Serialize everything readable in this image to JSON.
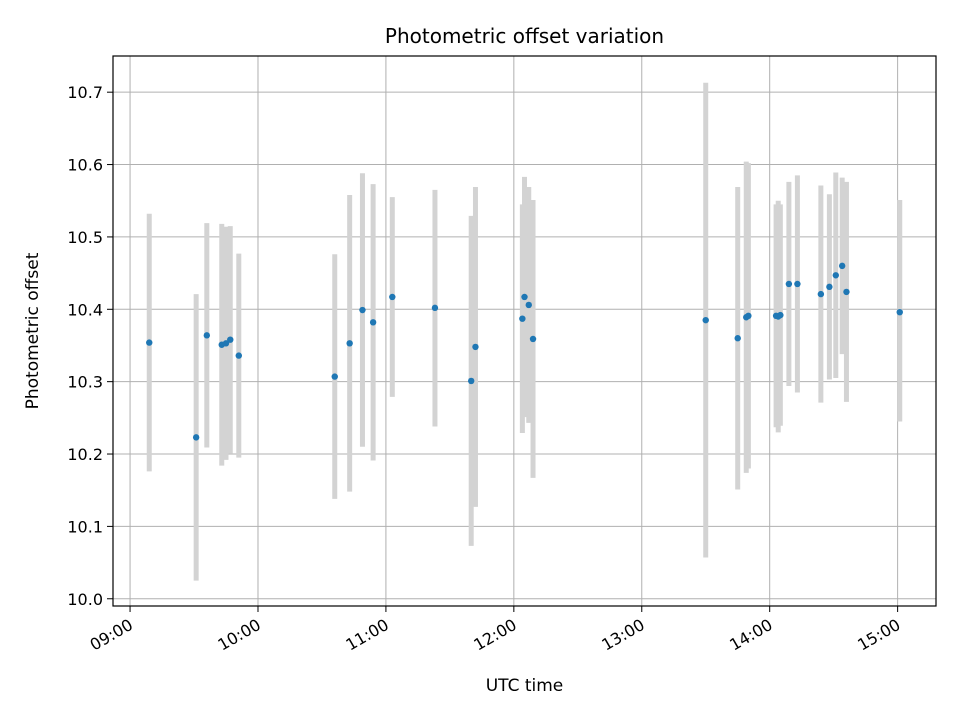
{
  "chart_data": {
    "type": "scatter",
    "title": "Photometric offset variation",
    "xlabel": "UTC time",
    "ylabel": "Photometric offset",
    "xlim": [
      "08:52",
      "15:18"
    ],
    "ylim": [
      9.99,
      10.75
    ],
    "x_ticks": [
      "09:00",
      "10:00",
      "11:00",
      "12:00",
      "13:00",
      "14:00",
      "15:00"
    ],
    "y_ticks": [
      "10.0",
      "10.1",
      "10.2",
      "10.3",
      "10.4",
      "10.5",
      "10.6",
      "10.7"
    ],
    "grid": true,
    "marker_color": "#1f77b4",
    "errorbar_color": "#d3d3d3",
    "points": [
      {
        "t": "09:09",
        "y": 10.354,
        "lo": 10.176,
        "hi": 10.532
      },
      {
        "t": "09:31",
        "y": 10.223,
        "lo": 10.025,
        "hi": 10.421
      },
      {
        "t": "09:36",
        "y": 10.364,
        "lo": 10.209,
        "hi": 10.519
      },
      {
        "t": "09:43",
        "y": 10.351,
        "lo": 10.184,
        "hi": 10.518
      },
      {
        "t": "09:45",
        "y": 10.353,
        "lo": 10.192,
        "hi": 10.514
      },
      {
        "t": "09:47",
        "y": 10.358,
        "lo": 10.201,
        "hi": 10.515
      },
      {
        "t": "09:51",
        "y": 10.336,
        "lo": 10.195,
        "hi": 10.477
      },
      {
        "t": "10:36",
        "y": 10.307,
        "lo": 10.138,
        "hi": 10.476
      },
      {
        "t": "10:43",
        "y": 10.353,
        "lo": 10.148,
        "hi": 10.558
      },
      {
        "t": "10:49",
        "y": 10.399,
        "lo": 10.21,
        "hi": 10.588
      },
      {
        "t": "10:54",
        "y": 10.382,
        "lo": 10.191,
        "hi": 10.573
      },
      {
        "t": "11:03",
        "y": 10.417,
        "lo": 10.279,
        "hi": 10.555
      },
      {
        "t": "11:23",
        "y": 10.402,
        "lo": 10.238,
        "hi": 10.565
      },
      {
        "t": "11:40",
        "y": 10.301,
        "lo": 10.073,
        "hi": 10.529
      },
      {
        "t": "11:42",
        "y": 10.348,
        "lo": 10.127,
        "hi": 10.569
      },
      {
        "t": "12:04",
        "y": 10.387,
        "lo": 10.229,
        "hi": 10.545
      },
      {
        "t": "12:05",
        "y": 10.417,
        "lo": 10.251,
        "hi": 10.583
      },
      {
        "t": "12:07",
        "y": 10.406,
        "lo": 10.243,
        "hi": 10.569
      },
      {
        "t": "12:09",
        "y": 10.359,
        "lo": 10.167,
        "hi": 10.551
      },
      {
        "t": "13:30",
        "y": 10.385,
        "lo": 10.057,
        "hi": 10.713
      },
      {
        "t": "13:45",
        "y": 10.36,
        "lo": 10.151,
        "hi": 10.569
      },
      {
        "t": "13:49",
        "y": 10.389,
        "lo": 10.174,
        "hi": 10.604
      },
      {
        "t": "13:50",
        "y": 10.391,
        "lo": 10.18,
        "hi": 10.602
      },
      {
        "t": "14:03",
        "y": 10.391,
        "lo": 10.237,
        "hi": 10.545
      },
      {
        "t": "14:04",
        "y": 10.39,
        "lo": 10.23,
        "hi": 10.55
      },
      {
        "t": "14:05",
        "y": 10.392,
        "lo": 10.239,
        "hi": 10.545
      },
      {
        "t": "14:09",
        "y": 10.435,
        "lo": 10.294,
        "hi": 10.576
      },
      {
        "t": "14:13",
        "y": 10.435,
        "lo": 10.285,
        "hi": 10.585
      },
      {
        "t": "14:24",
        "y": 10.421,
        "lo": 10.271,
        "hi": 10.571
      },
      {
        "t": "14:28",
        "y": 10.431,
        "lo": 10.303,
        "hi": 10.559
      },
      {
        "t": "14:31",
        "y": 10.447,
        "lo": 10.305,
        "hi": 10.589
      },
      {
        "t": "14:34",
        "y": 10.46,
        "lo": 10.338,
        "hi": 10.582
      },
      {
        "t": "14:36",
        "y": 10.424,
        "lo": 10.272,
        "hi": 10.576
      },
      {
        "t": "15:01",
        "y": 10.396,
        "lo": 10.245,
        "hi": 10.551
      }
    ]
  }
}
